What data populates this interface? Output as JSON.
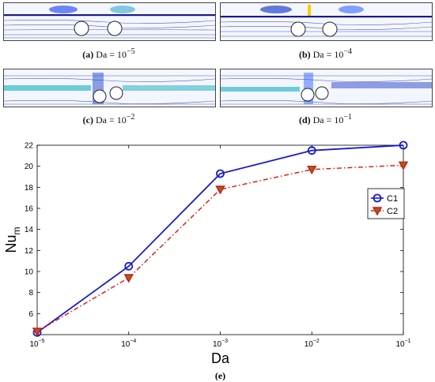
{
  "panels": [
    {
      "letter": "(a)",
      "text": "Da = 10",
      "exp": "−5"
    },
    {
      "letter": "(b)",
      "text": "Da = 10",
      "exp": "−4"
    },
    {
      "letter": "(c)",
      "text": "Da = 10",
      "exp": "−2"
    },
    {
      "letter": "(d)",
      "text": "Da = 10",
      "exp": "−1"
    }
  ],
  "chart_caption": "(e)",
  "chart_data": {
    "type": "line",
    "x": [
      1e-05,
      0.0001,
      0.001,
      0.01,
      0.1
    ],
    "x_scale": "log",
    "x_tick_labels": [
      {
        "base": "10",
        "exp": "−5"
      },
      {
        "base": "10",
        "exp": "−4"
      },
      {
        "base": "10",
        "exp": "−3"
      },
      {
        "base": "10",
        "exp": "−2"
      },
      {
        "base": "10",
        "exp": "−1"
      }
    ],
    "xlabel": "Da",
    "ylabel": {
      "base": "Nu",
      "sub": "m"
    },
    "ylim": [
      4,
      22
    ],
    "y_ticks": [
      6,
      8,
      10,
      12,
      14,
      16,
      18,
      20,
      22
    ],
    "grid": false,
    "legend_position": "right",
    "series": [
      {
        "name": "C1",
        "values": [
          4.2,
          10.5,
          19.3,
          21.5,
          22.0
        ],
        "color": "#1a1acc",
        "marker": "circle",
        "line": "solid"
      },
      {
        "name": "C2",
        "values": [
          4.3,
          9.4,
          17.8,
          19.7,
          20.1
        ],
        "color": "#e01010",
        "marker": "triangle-down",
        "line": "dash-dot"
      }
    ]
  }
}
